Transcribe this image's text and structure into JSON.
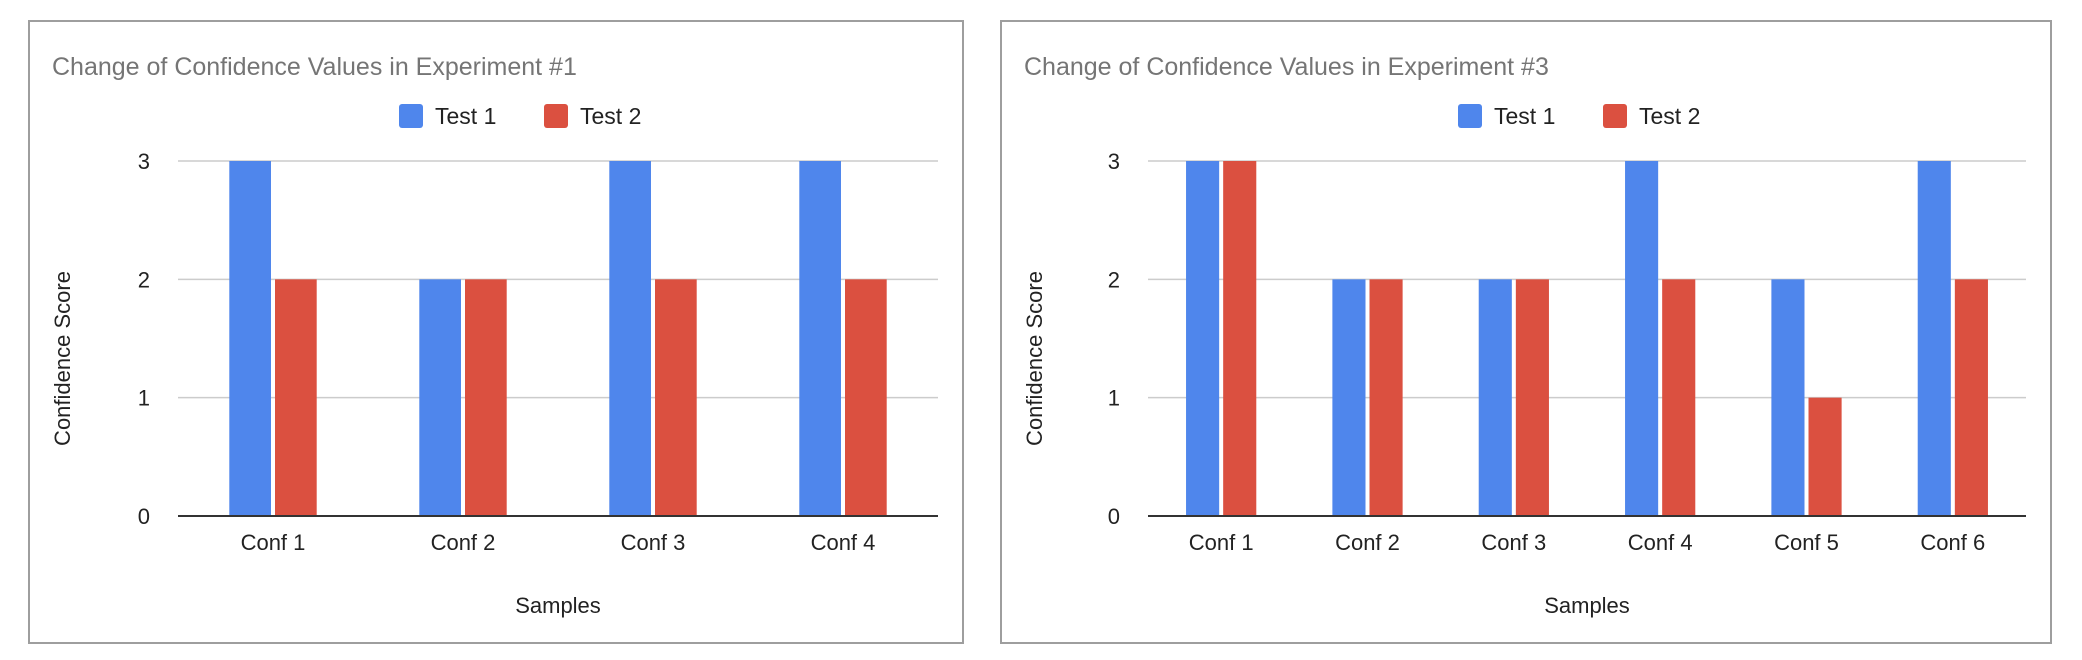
{
  "chart_data": [
    {
      "type": "bar",
      "title": "Change of Confidence Values in Experiment #1",
      "xlabel": "Samples",
      "ylabel": "Confidence Score",
      "categories": [
        "Conf 1",
        "Conf 2",
        "Conf 3",
        "Conf 4"
      ],
      "series": [
        {
          "name": "Test 1",
          "color": "#4f86ec",
          "values": [
            3,
            2,
            3,
            3
          ]
        },
        {
          "name": "Test 2",
          "color": "#db5040",
          "values": [
            2,
            2,
            2,
            2
          ]
        }
      ],
      "ylim": [
        0,
        3
      ],
      "yticks": [
        "0",
        "1",
        "2",
        "3"
      ],
      "grid": true,
      "legend": "top-center"
    },
    {
      "type": "bar",
      "title": "Change of Confidence Values in Experiment #3",
      "xlabel": "Samples",
      "ylabel": "Confidence Score",
      "categories": [
        "Conf 1",
        "Conf 2",
        "Conf 3",
        "Conf 4",
        "Conf 5",
        "Conf 6"
      ],
      "series": [
        {
          "name": "Test 1",
          "color": "#4f86ec",
          "values": [
            3,
            2,
            2,
            3,
            2,
            3
          ]
        },
        {
          "name": "Test 2",
          "color": "#db5040",
          "values": [
            3,
            2,
            2,
            2,
            1,
            2
          ]
        }
      ],
      "ylim": [
        0,
        3
      ],
      "yticks": [
        "0",
        "1",
        "2",
        "3"
      ],
      "grid": true,
      "legend": "top-center"
    }
  ]
}
